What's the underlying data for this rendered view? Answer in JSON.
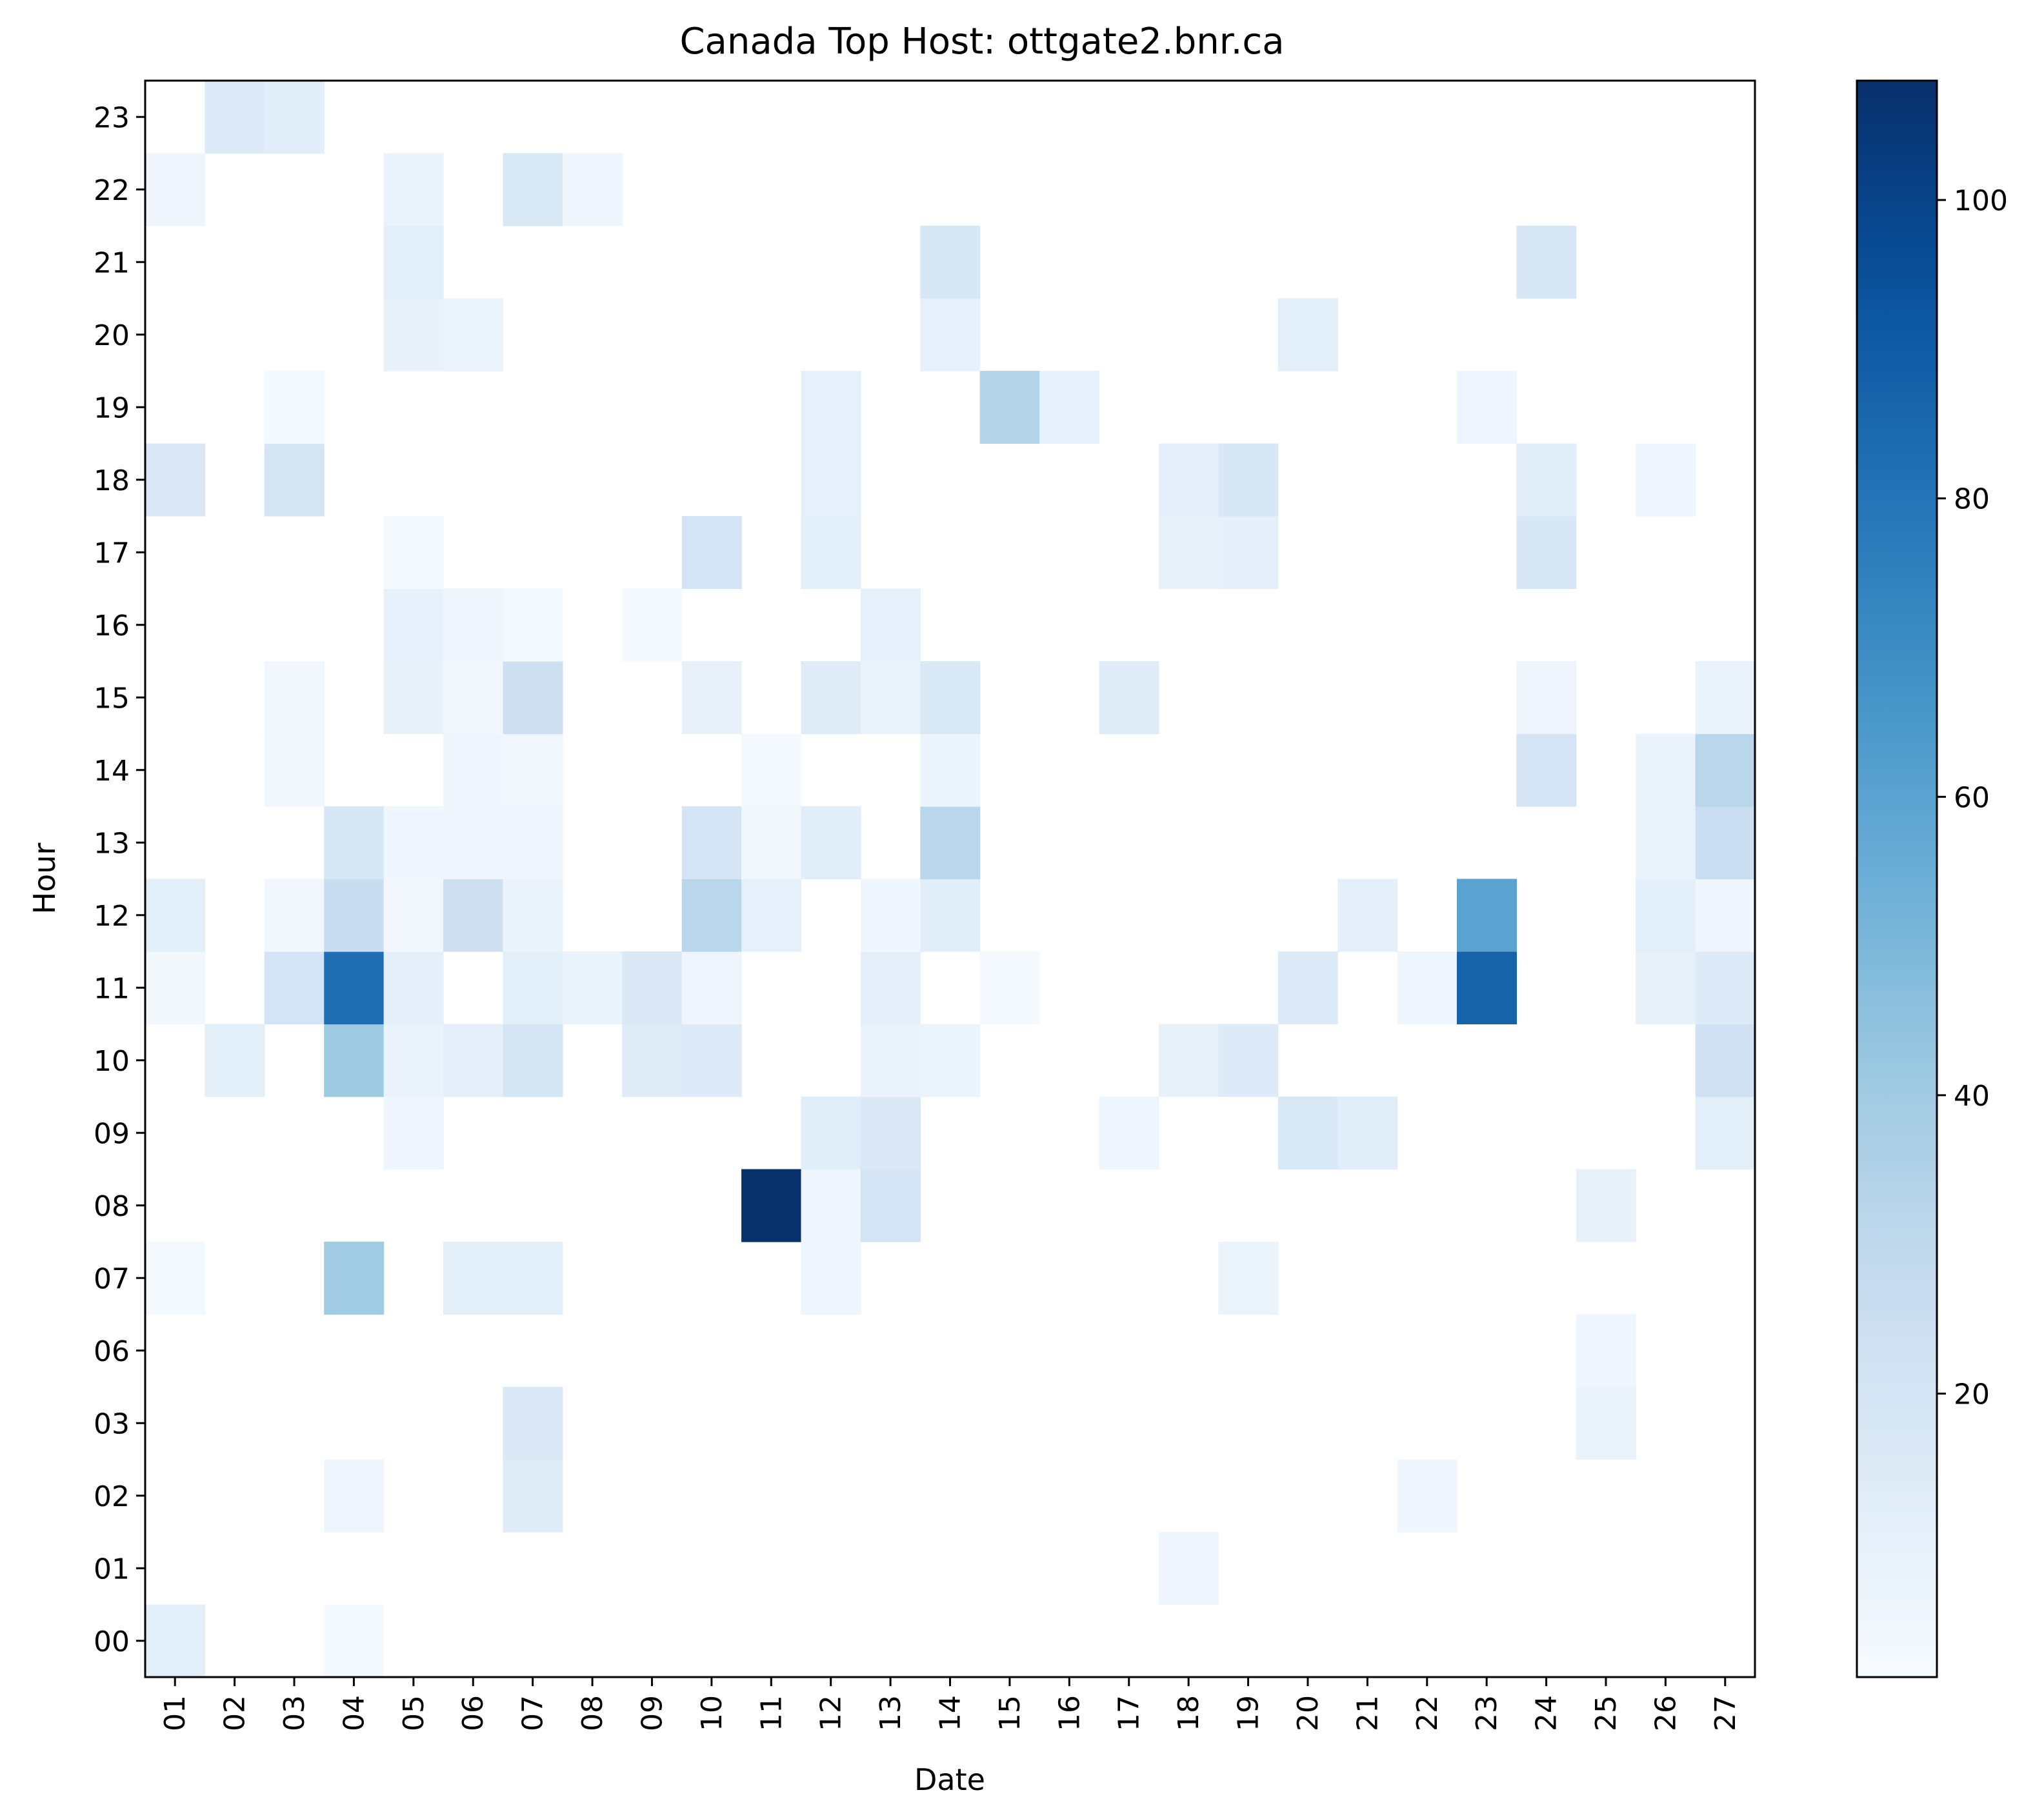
{
  "chart_data": {
    "type": "heatmap",
    "title": "Canada Top Host: ottgate2.bnr.ca",
    "xlabel": "Date",
    "ylabel": "Hour",
    "x": [
      "01",
      "02",
      "03",
      "04",
      "05",
      "06",
      "07",
      "08",
      "09",
      "10",
      "11",
      "12",
      "13",
      "14",
      "15",
      "16",
      "17",
      "18",
      "19",
      "20",
      "21",
      "22",
      "23",
      "24",
      "25",
      "26",
      "27"
    ],
    "y": [
      "00",
      "01",
      "02",
      "03",
      "06",
      "07",
      "08",
      "09",
      "10",
      "11",
      "12",
      "13",
      "14",
      "15",
      "16",
      "17",
      "18",
      "19",
      "20",
      "21",
      "22",
      "23"
    ],
    "colormap": "Blues",
    "vmin": 1,
    "vmax": 108,
    "colorbar_ticks": [
      20,
      40,
      60,
      80,
      100
    ],
    "grid": false,
    "cells": [
      [
        "01",
        "00",
        12
      ],
      [
        "04",
        "00",
        3
      ],
      [
        "18",
        "01",
        6
      ],
      [
        "04",
        "02",
        6
      ],
      [
        "07",
        "02",
        14
      ],
      [
        "22",
        "02",
        5
      ],
      [
        "07",
        "03",
        16
      ],
      [
        "25",
        "03",
        8
      ],
      [
        "25",
        "06",
        5
      ],
      [
        "01",
        "07",
        3
      ],
      [
        "04",
        "07",
        40
      ],
      [
        "06",
        "07",
        12
      ],
      [
        "07",
        "07",
        12
      ],
      [
        "12",
        "07",
        6
      ],
      [
        "19",
        "07",
        7
      ],
      [
        "11",
        "08",
        108
      ],
      [
        "12",
        "08",
        6
      ],
      [
        "13",
        "08",
        20
      ],
      [
        "25",
        "08",
        9
      ],
      [
        "05",
        "09",
        6
      ],
      [
        "12",
        "09",
        13
      ],
      [
        "13",
        "09",
        16
      ],
      [
        "17",
        "09",
        6
      ],
      [
        "20",
        "09",
        17
      ],
      [
        "21",
        "09",
        13
      ],
      [
        "27",
        "09",
        12
      ],
      [
        "02",
        "10",
        12
      ],
      [
        "04",
        "10",
        41
      ],
      [
        "05",
        "10",
        8
      ],
      [
        "06",
        "10",
        11
      ],
      [
        "07",
        "10",
        19
      ],
      [
        "09",
        "10",
        14
      ],
      [
        "10",
        "10",
        15
      ],
      [
        "13",
        "10",
        8
      ],
      [
        "14",
        "10",
        7
      ],
      [
        "18",
        "10",
        9
      ],
      [
        "19",
        "10",
        15
      ],
      [
        "27",
        "10",
        23
      ],
      [
        "01",
        "11",
        4
      ],
      [
        "03",
        "11",
        20
      ],
      [
        "04",
        "11",
        82
      ],
      [
        "05",
        "11",
        11
      ],
      [
        "07",
        "11",
        12
      ],
      [
        "08",
        "11",
        8
      ],
      [
        "09",
        "11",
        16
      ],
      [
        "10",
        "11",
        6
      ],
      [
        "13",
        "11",
        11
      ],
      [
        "15",
        "11",
        3
      ],
      [
        "20",
        "11",
        15
      ],
      [
        "22",
        "11",
        6
      ],
      [
        "23",
        "11",
        87
      ],
      [
        "26",
        "11",
        9
      ],
      [
        "27",
        "11",
        15
      ],
      [
        "01",
        "12",
        12
      ],
      [
        "03",
        "12",
        4
      ],
      [
        "04",
        "12",
        26
      ],
      [
        "05",
        "12",
        4
      ],
      [
        "06",
        "12",
        24
      ],
      [
        "07",
        "12",
        8
      ],
      [
        "10",
        "12",
        32
      ],
      [
        "11",
        "12",
        10
      ],
      [
        "13",
        "12",
        5
      ],
      [
        "14",
        "12",
        13
      ],
      [
        "21",
        "12",
        11
      ],
      [
        "23",
        "12",
        60
      ],
      [
        "26",
        "12",
        12
      ],
      [
        "27",
        "12",
        6
      ],
      [
        "04",
        "13",
        18
      ],
      [
        "05",
        "13",
        5
      ],
      [
        "06",
        "13",
        6
      ],
      [
        "07",
        "13",
        6
      ],
      [
        "10",
        "13",
        20
      ],
      [
        "11",
        "13",
        4
      ],
      [
        "12",
        "13",
        13
      ],
      [
        "14",
        "13",
        32
      ],
      [
        "26",
        "13",
        8
      ],
      [
        "27",
        "13",
        25
      ],
      [
        "03",
        "14",
        4
      ],
      [
        "06",
        "14",
        5
      ],
      [
        "07",
        "14",
        4
      ],
      [
        "11",
        "14",
        3
      ],
      [
        "14",
        "14",
        7
      ],
      [
        "24",
        "14",
        20
      ],
      [
        "26",
        "14",
        8
      ],
      [
        "27",
        "14",
        32
      ],
      [
        "03",
        "15",
        4
      ],
      [
        "05",
        "15",
        9
      ],
      [
        "06",
        "15",
        4
      ],
      [
        "07",
        "15",
        24
      ],
      [
        "10",
        "15",
        9
      ],
      [
        "12",
        "15",
        14
      ],
      [
        "13",
        "15",
        8
      ],
      [
        "14",
        "15",
        17
      ],
      [
        "17",
        "15",
        14
      ],
      [
        "24",
        "15",
        6
      ],
      [
        "27",
        "15",
        8
      ],
      [
        "05",
        "16",
        10
      ],
      [
        "06",
        "16",
        6
      ],
      [
        "07",
        "16",
        3
      ],
      [
        "09",
        "16",
        3
      ],
      [
        "13",
        "16",
        10
      ],
      [
        "05",
        "17",
        3
      ],
      [
        "10",
        "17",
        20
      ],
      [
        "12",
        "17",
        12
      ],
      [
        "18",
        "17",
        9
      ],
      [
        "19",
        "17",
        11
      ],
      [
        "24",
        "17",
        18
      ],
      [
        "01",
        "18",
        16
      ],
      [
        "03",
        "18",
        19
      ],
      [
        "12",
        "18",
        10
      ],
      [
        "18",
        "18",
        11
      ],
      [
        "19",
        "18",
        18
      ],
      [
        "24",
        "18",
        13
      ],
      [
        "26",
        "18",
        5
      ],
      [
        "03",
        "19",
        3
      ],
      [
        "12",
        "19",
        10
      ],
      [
        "15",
        "19",
        34
      ],
      [
        "16",
        "19",
        10
      ],
      [
        "23",
        "19",
        6
      ],
      [
        "05",
        "20",
        9
      ],
      [
        "06",
        "20",
        7
      ],
      [
        "14",
        "20",
        10
      ],
      [
        "20",
        "20",
        12
      ],
      [
        "05",
        "21",
        12
      ],
      [
        "14",
        "21",
        18
      ],
      [
        "24",
        "21",
        18
      ],
      [
        "01",
        "22",
        6
      ],
      [
        "05",
        "22",
        8
      ],
      [
        "07",
        "22",
        17
      ],
      [
        "08",
        "22",
        5
      ],
      [
        "02",
        "23",
        15
      ],
      [
        "03",
        "23",
        13
      ]
    ]
  }
}
